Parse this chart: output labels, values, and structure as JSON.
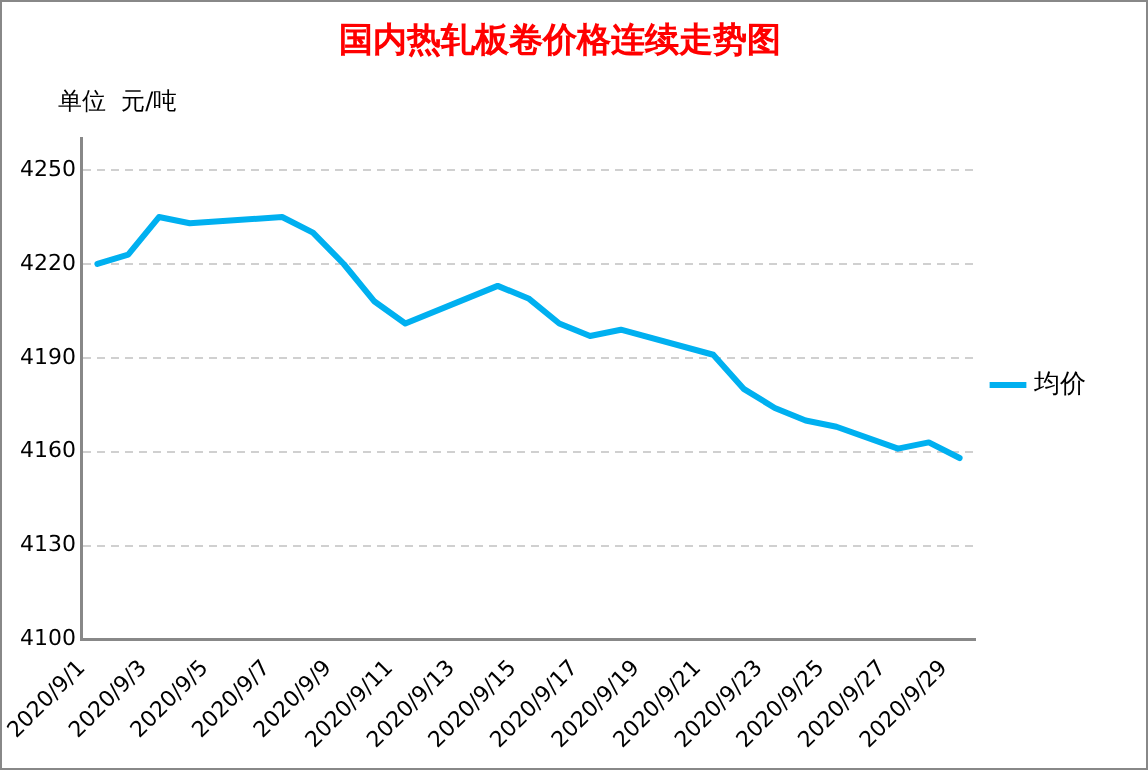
{
  "chart_data": {
    "type": "line",
    "title": "国内热轧板卷价格连续走势图",
    "ylabel": "单位  元/吨",
    "x": [
      "2020-09-01T12:00",
      "2020-09-02T12:00",
      "2020-09-03T12:00",
      "2020-09-04T12:00",
      "2020-09-07T12:00",
      "2020-09-08T12:00",
      "2020-09-09T12:00",
      "2020-09-10T12:00",
      "2020-09-11T12:00",
      "2020-09-14T12:00",
      "2020-09-15T12:00",
      "2020-09-16T12:00",
      "2020-09-17T12:00",
      "2020-09-18T12:00",
      "2020-09-21T12:00",
      "2020-09-22T12:00",
      "2020-09-23T12:00",
      "2020-09-24T12:00",
      "2020-09-25T12:00",
      "2020-09-27T12:00",
      "2020-09-28T12:00",
      "2020-09-29T12:00"
    ],
    "series": [
      {
        "name": "均价",
        "color": "#00b0f0",
        "values": [
          4220,
          4223,
          4235,
          4233,
          4235,
          4230,
          4220,
          4208,
          4201,
          4213,
          4209,
          4201,
          4197,
          4199,
          4191,
          4180,
          4174,
          4170,
          4168,
          4161,
          4163,
          4158
        ]
      }
    ],
    "xlim": [
      "2020-09-01",
      "2020-09-30"
    ],
    "xticks": [
      {
        "value": "2020-09-01",
        "label": "2020/9/1"
      },
      {
        "value": "2020-09-03",
        "label": "2020/9/3"
      },
      {
        "value": "2020-09-05",
        "label": "2020/9/5"
      },
      {
        "value": "2020-09-07",
        "label": "2020/9/7"
      },
      {
        "value": "2020-09-09",
        "label": "2020/9/9"
      },
      {
        "value": "2020-09-11",
        "label": "2020/9/11"
      },
      {
        "value": "2020-09-13",
        "label": "2020/9/13"
      },
      {
        "value": "2020-09-15",
        "label": "2020/9/15"
      },
      {
        "value": "2020-09-17",
        "label": "2020/9/17"
      },
      {
        "value": "2020-09-19",
        "label": "2020/9/19"
      },
      {
        "value": "2020-09-21",
        "label": "2020/9/21"
      },
      {
        "value": "2020-09-23",
        "label": "2020/9/23"
      },
      {
        "value": "2020-09-25",
        "label": "2020/9/25"
      },
      {
        "value": "2020-09-27",
        "label": "2020/9/27"
      },
      {
        "value": "2020-09-29",
        "label": "2020/9/29"
      }
    ],
    "ylim": [
      4100,
      4260
    ],
    "yticks": [
      4100,
      4130,
      4160,
      4190,
      4220,
      4250
    ],
    "grid": "y",
    "legend": "right",
    "marker": "none",
    "line_style": "solid"
  }
}
